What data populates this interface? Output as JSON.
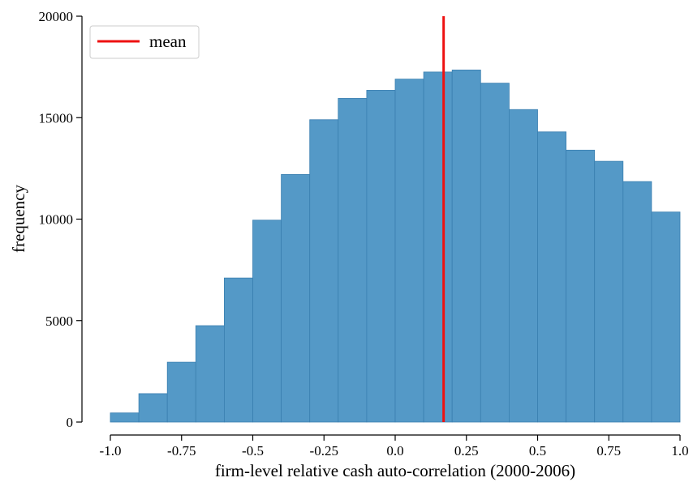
{
  "chart_data": {
    "type": "bar",
    "xlabel": "firm-level relative cash auto-correlation (2000-2006)",
    "ylabel": "frequency",
    "xlim": [
      -1.0,
      1.0
    ],
    "ylim": [
      0,
      20000
    ],
    "x_ticks": [
      -1.0,
      -0.75,
      -0.5,
      -0.25,
      0.0,
      0.25,
      0.5,
      0.75,
      1.0
    ],
    "x_tick_labels": [
      "-1.0",
      "-0.75",
      "-0.5",
      "-0.25",
      "0.0",
      "0.25",
      "0.5",
      "0.75",
      "1.0"
    ],
    "y_ticks": [
      0,
      5000,
      10000,
      15000,
      20000
    ],
    "y_tick_labels": [
      "0",
      "5000",
      "10000",
      "15000",
      "20000"
    ],
    "bin_edges": [
      -1.0,
      -0.9,
      -0.8,
      -0.7,
      -0.6,
      -0.5,
      -0.4,
      -0.3,
      -0.2,
      -0.1,
      0.0,
      0.1,
      0.2,
      0.3,
      0.4,
      0.5,
      0.6,
      0.7,
      0.8,
      0.9,
      1.0
    ],
    "values": [
      450,
      1400,
      2950,
      4750,
      7100,
      9950,
      12200,
      14900,
      15950,
      16350,
      16900,
      17250,
      17350,
      16700,
      15400,
      14300,
      13400,
      12850,
      11850,
      10350
    ],
    "bar_color": "#5499c7",
    "bar_edge_color": "#3a7fb0",
    "mean": 0.17,
    "mean_color": "#ee1111",
    "legend": {
      "label": "mean",
      "position": "top-left"
    },
    "grid": false
  }
}
